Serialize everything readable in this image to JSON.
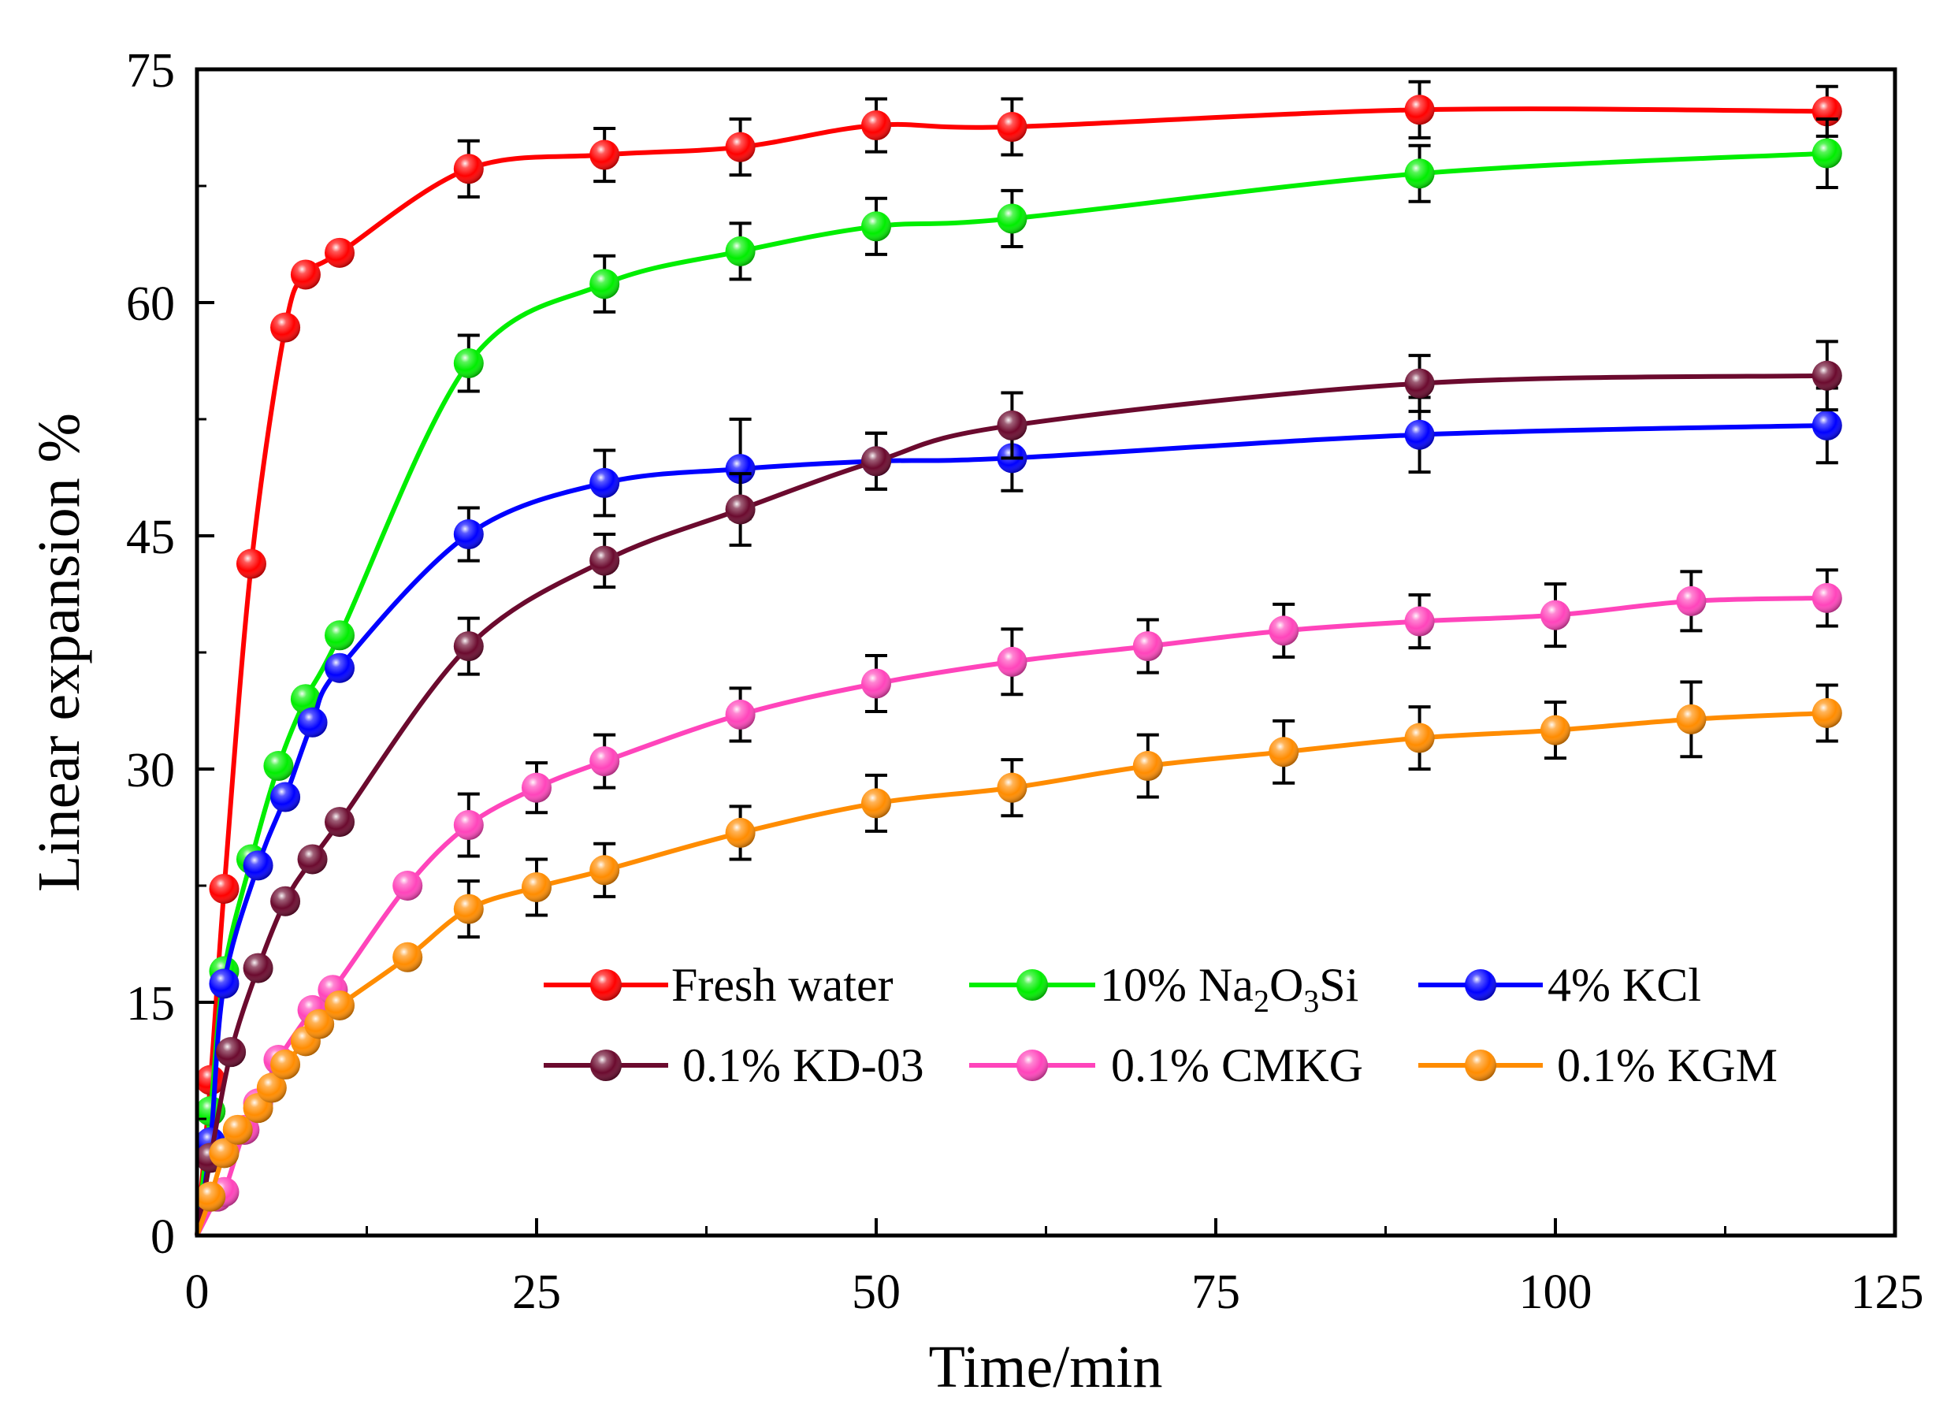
{
  "chart_data": {
    "type": "line",
    "title": "",
    "xlabel": "Time/min",
    "ylabel": "Linear expansion %",
    "xlim": [
      0,
      125
    ],
    "ylim": [
      0,
      75
    ],
    "xticks": [
      0,
      25,
      50,
      75,
      100,
      125
    ],
    "yticks": [
      0,
      15,
      30,
      45,
      60,
      75
    ],
    "xtick_labels": [
      "0",
      "25",
      "50",
      "75",
      "100",
      "125"
    ],
    "ytick_labels": [
      "0",
      "15",
      "30",
      "45",
      "60",
      "75"
    ],
    "grid": false,
    "legend_position": "bottom-center",
    "series": [
      {
        "name": "Fresh water",
        "legend_label": "Fresh water",
        "color": "#ff0000",
        "points": [
          {
            "x": 0,
            "y": 0
          },
          {
            "x": 1,
            "y": 10
          },
          {
            "x": 2,
            "y": 22.3
          },
          {
            "x": 4,
            "y": 43.2
          },
          {
            "x": 6.5,
            "y": 58.4
          },
          {
            "x": 8,
            "y": 61.8
          },
          {
            "x": 10.5,
            "y": 63.2
          },
          {
            "x": 20,
            "y": 68.6
          },
          {
            "x": 30,
            "y": 69.5
          },
          {
            "x": 40,
            "y": 70
          },
          {
            "x": 50,
            "y": 71.4
          },
          {
            "x": 60,
            "y": 71.3
          },
          {
            "x": 90,
            "y": 72.4
          },
          {
            "x": 120,
            "y": 72.3
          }
        ],
        "errors": [
          {
            "x": 20,
            "err": 1.8
          },
          {
            "x": 30,
            "err": 1.7
          },
          {
            "x": 40,
            "err": 1.8
          },
          {
            "x": 50,
            "err": 1.7
          },
          {
            "x": 60,
            "err": 1.8
          },
          {
            "x": 90,
            "err": 1.8
          },
          {
            "x": 120,
            "err": 1.6
          }
        ]
      },
      {
        "name": "10% Na2O3Si",
        "legend_label": "10% Na",
        "legend_sub1": "2",
        "legend_mid": "O",
        "legend_sub2": "3",
        "legend_end": "Si",
        "color": "#00ee00",
        "points": [
          {
            "x": 0,
            "y": 0
          },
          {
            "x": 1,
            "y": 8
          },
          {
            "x": 2,
            "y": 17
          },
          {
            "x": 4,
            "y": 24.2
          },
          {
            "x": 6,
            "y": 30.2
          },
          {
            "x": 8,
            "y": 34.5
          },
          {
            "x": 10.5,
            "y": 38.6
          },
          {
            "x": 20,
            "y": 56.1
          },
          {
            "x": 30,
            "y": 61.2
          },
          {
            "x": 40,
            "y": 63.3
          },
          {
            "x": 50,
            "y": 64.9
          },
          {
            "x": 60,
            "y": 65.4
          },
          {
            "x": 90,
            "y": 68.3
          },
          {
            "x": 120,
            "y": 69.6
          }
        ],
        "errors": [
          {
            "x": 20,
            "err": 1.8
          },
          {
            "x": 30,
            "err": 1.8
          },
          {
            "x": 40,
            "err": 1.8
          },
          {
            "x": 50,
            "err": 1.8
          },
          {
            "x": 60,
            "err": 1.8
          },
          {
            "x": 90,
            "err": 1.8
          },
          {
            "x": 120,
            "err": 2.2
          }
        ]
      },
      {
        "name": "4% KCl",
        "legend_label": "4% KCl",
        "color": "#0000ff",
        "points": [
          {
            "x": 0,
            "y": 0
          },
          {
            "x": 1,
            "y": 6
          },
          {
            "x": 2,
            "y": 16.2
          },
          {
            "x": 4.5,
            "y": 23.8
          },
          {
            "x": 6.5,
            "y": 28.2
          },
          {
            "x": 8.5,
            "y": 33
          },
          {
            "x": 10.5,
            "y": 36.5
          },
          {
            "x": 20,
            "y": 45.1
          },
          {
            "x": 30,
            "y": 48.4
          },
          {
            "x": 40,
            "y": 49.3
          },
          {
            "x": 50,
            "y": 49.8
          },
          {
            "x": 60,
            "y": 50
          },
          {
            "x": 90,
            "y": 51.5
          },
          {
            "x": 120,
            "y": 52.1
          }
        ],
        "errors": [
          {
            "x": 20,
            "err": 1.7
          },
          {
            "x": 30,
            "err": 2.1
          },
          {
            "x": 40,
            "err": 3.2
          },
          {
            "x": 50,
            "err": 1.8
          },
          {
            "x": 60,
            "err": 2.1
          },
          {
            "x": 90,
            "err": 2.4
          },
          {
            "x": 120,
            "err": 2.4
          }
        ]
      },
      {
        "name": "0.1% KD-03",
        "legend_label": "0.1% KD-03",
        "color": "#6b0a2e",
        "points": [
          {
            "x": 0,
            "y": 0
          },
          {
            "x": 1,
            "y": 5
          },
          {
            "x": 2.5,
            "y": 11.8
          },
          {
            "x": 4.5,
            "y": 17.2
          },
          {
            "x": 6.5,
            "y": 21.5
          },
          {
            "x": 8.5,
            "y": 24.2
          },
          {
            "x": 10.5,
            "y": 26.6
          },
          {
            "x": 20,
            "y": 37.9
          },
          {
            "x": 30,
            "y": 43.4
          },
          {
            "x": 40,
            "y": 46.7
          },
          {
            "x": 50,
            "y": 49.8
          },
          {
            "x": 60,
            "y": 52.1
          },
          {
            "x": 90,
            "y": 54.8
          },
          {
            "x": 120,
            "y": 55.3
          }
        ],
        "errors": [
          {
            "x": 20,
            "err": 1.8
          },
          {
            "x": 30,
            "err": 1.7
          },
          {
            "x": 40,
            "err": 2.3
          },
          {
            "x": 50,
            "err": 1.8
          },
          {
            "x": 60,
            "err": 2.1
          },
          {
            "x": 90,
            "err": 1.8
          },
          {
            "x": 120,
            "err": 2.2
          }
        ]
      },
      {
        "name": "0.1% CMKG",
        "legend_label": "0.1% CMKG",
        "color": "#ff44bb",
        "points": [
          {
            "x": 0,
            "y": 0
          },
          {
            "x": 1.5,
            "y": 2.5
          },
          {
            "x": 2,
            "y": 2.8
          },
          {
            "x": 3.5,
            "y": 6.8
          },
          {
            "x": 4.5,
            "y": 8.5
          },
          {
            "x": 6,
            "y": 11.3
          },
          {
            "x": 8.5,
            "y": 14.5
          },
          {
            "x": 10,
            "y": 15.8
          },
          {
            "x": 15.5,
            "y": 22.5
          },
          {
            "x": 20,
            "y": 26.4
          },
          {
            "x": 25,
            "y": 28.8
          },
          {
            "x": 30,
            "y": 30.5
          },
          {
            "x": 40,
            "y": 33.5
          },
          {
            "x": 50,
            "y": 35.5
          },
          {
            "x": 60,
            "y": 36.9
          },
          {
            "x": 70,
            "y": 37.9
          },
          {
            "x": 80,
            "y": 38.9
          },
          {
            "x": 90,
            "y": 39.5
          },
          {
            "x": 100,
            "y": 39.9
          },
          {
            "x": 110,
            "y": 40.8
          },
          {
            "x": 120,
            "y": 41
          }
        ],
        "errors": [
          {
            "x": 20,
            "err": 2.0
          },
          {
            "x": 25,
            "err": 1.6
          },
          {
            "x": 30,
            "err": 1.7
          },
          {
            "x": 40,
            "err": 1.7
          },
          {
            "x": 50,
            "err": 1.8
          },
          {
            "x": 60,
            "err": 2.1
          },
          {
            "x": 70,
            "err": 1.7
          },
          {
            "x": 80,
            "err": 1.7
          },
          {
            "x": 90,
            "err": 1.7
          },
          {
            "x": 100,
            "err": 2.0
          },
          {
            "x": 110,
            "err": 1.9
          },
          {
            "x": 120,
            "err": 1.8
          }
        ]
      },
      {
        "name": "0.1% KGM",
        "legend_label": "0.1% KGM",
        "color": "#ff8c00",
        "points": [
          {
            "x": 0,
            "y": 0
          },
          {
            "x": 1,
            "y": 2.5
          },
          {
            "x": 2,
            "y": 5.3
          },
          {
            "x": 3,
            "y": 6.8
          },
          {
            "x": 4.5,
            "y": 8.2
          },
          {
            "x": 5.5,
            "y": 9.5
          },
          {
            "x": 6.5,
            "y": 11
          },
          {
            "x": 8,
            "y": 12.5
          },
          {
            "x": 9,
            "y": 13.6
          },
          {
            "x": 10.5,
            "y": 14.8
          },
          {
            "x": 15.5,
            "y": 17.9
          },
          {
            "x": 20,
            "y": 21
          },
          {
            "x": 25,
            "y": 22.4
          },
          {
            "x": 30,
            "y": 23.5
          },
          {
            "x": 40,
            "y": 25.9
          },
          {
            "x": 50,
            "y": 27.8
          },
          {
            "x": 60,
            "y": 28.8
          },
          {
            "x": 70,
            "y": 30.2
          },
          {
            "x": 80,
            "y": 31.1
          },
          {
            "x": 90,
            "y": 32
          },
          {
            "x": 100,
            "y": 32.5
          },
          {
            "x": 110,
            "y": 33.2
          },
          {
            "x": 120,
            "y": 33.6
          }
        ],
        "errors": [
          {
            "x": 20,
            "err": 1.8
          },
          {
            "x": 25,
            "err": 1.8
          },
          {
            "x": 30,
            "err": 1.7
          },
          {
            "x": 40,
            "err": 1.7
          },
          {
            "x": 50,
            "err": 1.8
          },
          {
            "x": 60,
            "err": 1.8
          },
          {
            "x": 70,
            "err": 2.0
          },
          {
            "x": 80,
            "err": 2.0
          },
          {
            "x": 90,
            "err": 2.0
          },
          {
            "x": 100,
            "err": 1.8
          },
          {
            "x": 110,
            "err": 2.4
          },
          {
            "x": 120,
            "err": 1.8
          }
        ]
      }
    ]
  }
}
